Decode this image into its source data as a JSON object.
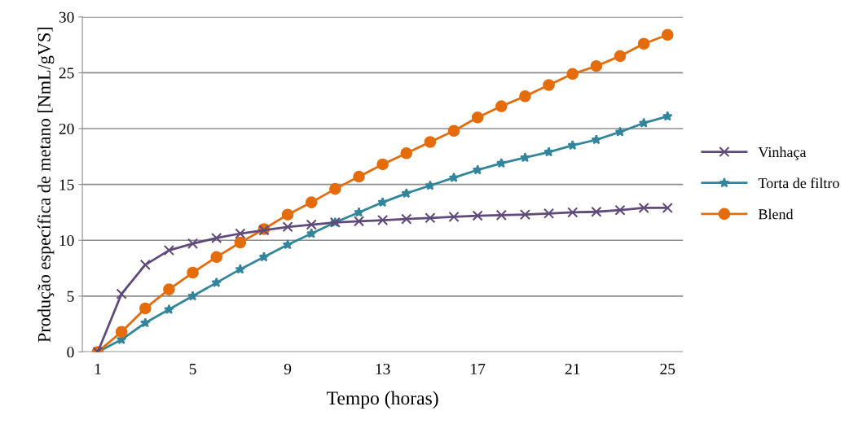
{
  "chart_data": {
    "type": "line",
    "xlabel": "Tempo (horas)",
    "ylabel": "Produção específica de metano [NmL/gVS]",
    "categories": [
      "1",
      null,
      null,
      null,
      "5",
      null,
      null,
      null,
      "9",
      null,
      null,
      null,
      "13",
      null,
      null,
      null,
      "17",
      null,
      null,
      null,
      "21",
      null,
      null,
      null,
      "25"
    ],
    "ylim": [
      0,
      30
    ],
    "yticks": [
      0,
      5,
      10,
      15,
      20,
      25,
      30
    ],
    "grid": "y",
    "legend": "right",
    "series": [
      {
        "name": "Vinhaça",
        "color": "#604a7b",
        "marker": "cross",
        "values": [
          0,
          5.2,
          7.8,
          9.1,
          9.7,
          10.2,
          10.6,
          10.9,
          11.2,
          11.4,
          11.6,
          11.7,
          11.8,
          11.9,
          12.0,
          12.1,
          12.2,
          12.25,
          12.3,
          12.4,
          12.5,
          12.55,
          12.7,
          12.9,
          12.9
        ]
      },
      {
        "name": "Torta de filtro",
        "color": "#31859c",
        "marker": "star",
        "values": [
          0,
          1.1,
          2.6,
          3.8,
          5.0,
          6.2,
          7.4,
          8.5,
          9.6,
          10.6,
          11.6,
          12.5,
          13.4,
          14.2,
          14.9,
          15.6,
          16.3,
          16.9,
          17.4,
          17.9,
          18.5,
          19.0,
          19.7,
          20.5,
          21.1
        ]
      },
      {
        "name": "Blend",
        "color": "#e46c0a",
        "marker": "circle",
        "values": [
          0,
          1.8,
          3.9,
          5.6,
          7.1,
          8.5,
          9.8,
          11.0,
          12.3,
          13.4,
          14.6,
          15.7,
          16.8,
          17.8,
          18.8,
          19.8,
          21.0,
          22.0,
          22.9,
          23.9,
          24.9,
          25.6,
          26.5,
          27.6,
          28.4
        ]
      }
    ]
  }
}
